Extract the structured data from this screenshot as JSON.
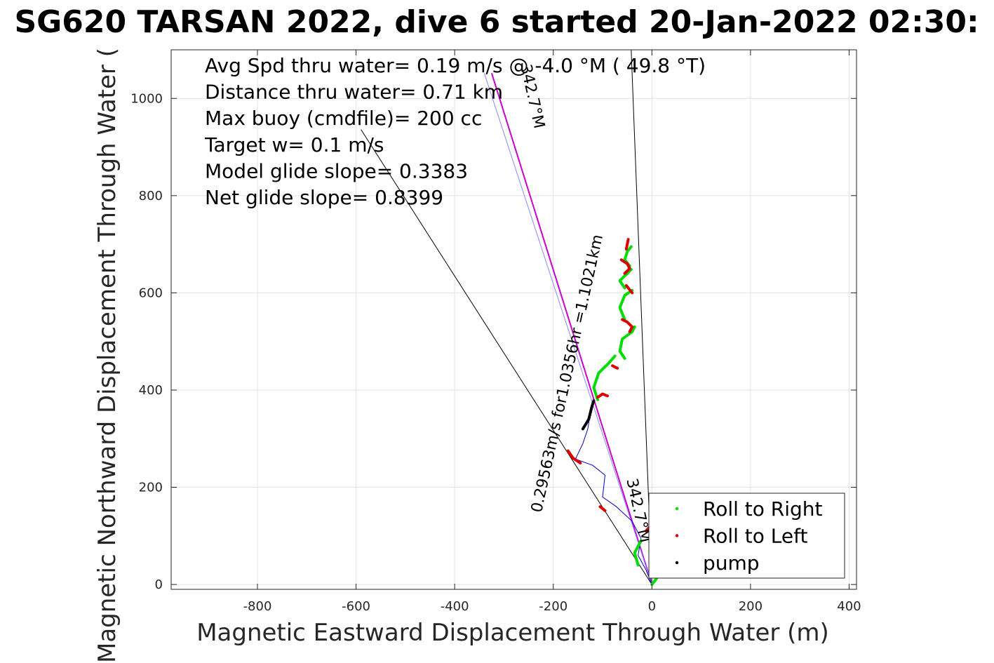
{
  "chart_data": {
    "type": "scatter",
    "title": "SG620 TARSAN 2022, dive 6 started 20-Jan-2022 02:30:",
    "xlabel": "Magnetic Eastward Displacement Through Water (m)",
    "ylabel": "Magnetic Northward Displacement Through Water (",
    "xlim": [
      -975,
      415
    ],
    "ylim": [
      -10,
      1100
    ],
    "xticks": [
      -800,
      -600,
      -400,
      -200,
      0,
      200,
      400
    ],
    "yticks": [
      0,
      200,
      400,
      600,
      800,
      1000
    ],
    "grid": true,
    "legend_position": "bottom-right",
    "annotations": [
      "Avg Spd thru water=  0.19 m/s @  -4.0 °M ( 49.8 °T)",
      "Distance thru water=  0.71 km",
      "Max buoy (cmdfile)= 200 cc",
      "Target w= 0.1 m/s",
      "Model glide slope= 0.3383",
      "Net glide slope= 0.8399"
    ],
    "bearing_labels": [
      {
        "text": "0.29563m/s for1.0356hr =1.1021km",
        "at": [
          -162,
          432
        ],
        "angle": -77.5,
        "size": 22
      },
      {
        "text": "342.7°M",
        "at": [
          -252,
          1002
        ],
        "angle": 77.5,
        "size": 22
      },
      {
        "text": "342.7°M",
        "at": [
          -37,
          150
        ],
        "angle": 77.5,
        "size": 22
      }
    ],
    "lines": [
      {
        "name": "glide cone left",
        "color": "#000000",
        "width": 1,
        "points": [
          [
            0,
            0
          ],
          [
            -590,
            936
          ]
        ]
      },
      {
        "name": "glide cone right",
        "color": "#000000",
        "width": 1,
        "points": [
          [
            0,
            0
          ],
          [
            -42,
            1100
          ]
        ]
      },
      {
        "name": "course",
        "color": "#cc00cc",
        "width": 2,
        "points": [
          [
            0,
            0
          ],
          [
            -325,
            1052
          ]
        ]
      },
      {
        "name": "current",
        "color": "#8888ff",
        "width": 1,
        "points": [
          [
            0,
            0
          ],
          [
            -340,
            1052
          ]
        ]
      },
      {
        "name": "track",
        "color": "#0000cc",
        "width": 1,
        "points": [
          [
            0,
            0
          ],
          [
            -12,
            30
          ],
          [
            -28,
            60
          ],
          [
            -22,
            95
          ],
          [
            -40,
            130
          ],
          [
            -72,
            160
          ],
          [
            -100,
            180
          ],
          [
            -95,
            225
          ],
          [
            -120,
            245
          ],
          [
            -155,
            258
          ],
          [
            -140,
            290
          ],
          [
            -130,
            320
          ],
          [
            -125,
            350
          ],
          [
            -118,
            375
          ]
        ]
      }
    ],
    "series": [
      {
        "name": "Roll to Right",
        "color": "#00dd00",
        "segments": [
          [
            [
              0,
              0
            ],
            [
              8,
              10
            ],
            [
              14,
              20
            ],
            [
              8,
              30
            ]
          ],
          [
            [
              -28,
              40
            ],
            [
              -35,
              65
            ],
            [
              -22,
              90
            ]
          ],
          [
            [
              -110,
              380
            ],
            [
              -118,
              405
            ],
            [
              -108,
              435
            ],
            [
              -88,
              455
            ],
            [
              -75,
              470
            ]
          ],
          [
            [
              -55,
              465
            ],
            [
              -65,
              480
            ],
            [
              -60,
              505
            ],
            [
              -40,
              520
            ],
            [
              -35,
              530
            ]
          ],
          [
            [
              -55,
              545
            ],
            [
              -65,
              570
            ],
            [
              -55,
              595
            ],
            [
              -40,
              605
            ]
          ],
          [
            [
              -55,
              610
            ],
            [
              -65,
              625
            ],
            [
              -50,
              640
            ],
            [
              -42,
              648
            ]
          ],
          [
            [
              -45,
              655
            ],
            [
              -55,
              668
            ],
            [
              -50,
              685
            ],
            [
              -42,
              695
            ]
          ]
        ]
      },
      {
        "name": "Roll to Left",
        "color": "#dd0000",
        "segments": [
          [
            [
              -12,
              110
            ],
            [
              -5,
              118
            ]
          ],
          [
            [
              -105,
              160
            ],
            [
              -95,
              152
            ]
          ],
          [
            [
              -170,
              275
            ],
            [
              -160,
              260
            ],
            [
              -145,
              250
            ]
          ],
          [
            [
              -110,
              385
            ],
            [
              -100,
              392
            ],
            [
              -90,
              388
            ]
          ],
          [
            [
              -80,
              450
            ],
            [
              -70,
              445
            ]
          ],
          [
            [
              -45,
              520
            ],
            [
              -40,
              530
            ],
            [
              -50,
              540
            ],
            [
              -60,
              545
            ]
          ],
          [
            [
              -40,
              600
            ],
            [
              -52,
              615
            ]
          ],
          [
            [
              -55,
              640
            ],
            [
              -45,
              650
            ],
            [
              -50,
              660
            ],
            [
              -62,
              668
            ]
          ],
          [
            [
              -52,
              690
            ],
            [
              -48,
              710
            ]
          ]
        ]
      },
      {
        "name": "pump",
        "color": "#000000",
        "segments": [
          [
            [
              -140,
              320
            ],
            [
              -128,
              340
            ],
            [
              -122,
              365
            ],
            [
              -118,
              378
            ]
          ]
        ]
      }
    ]
  }
}
